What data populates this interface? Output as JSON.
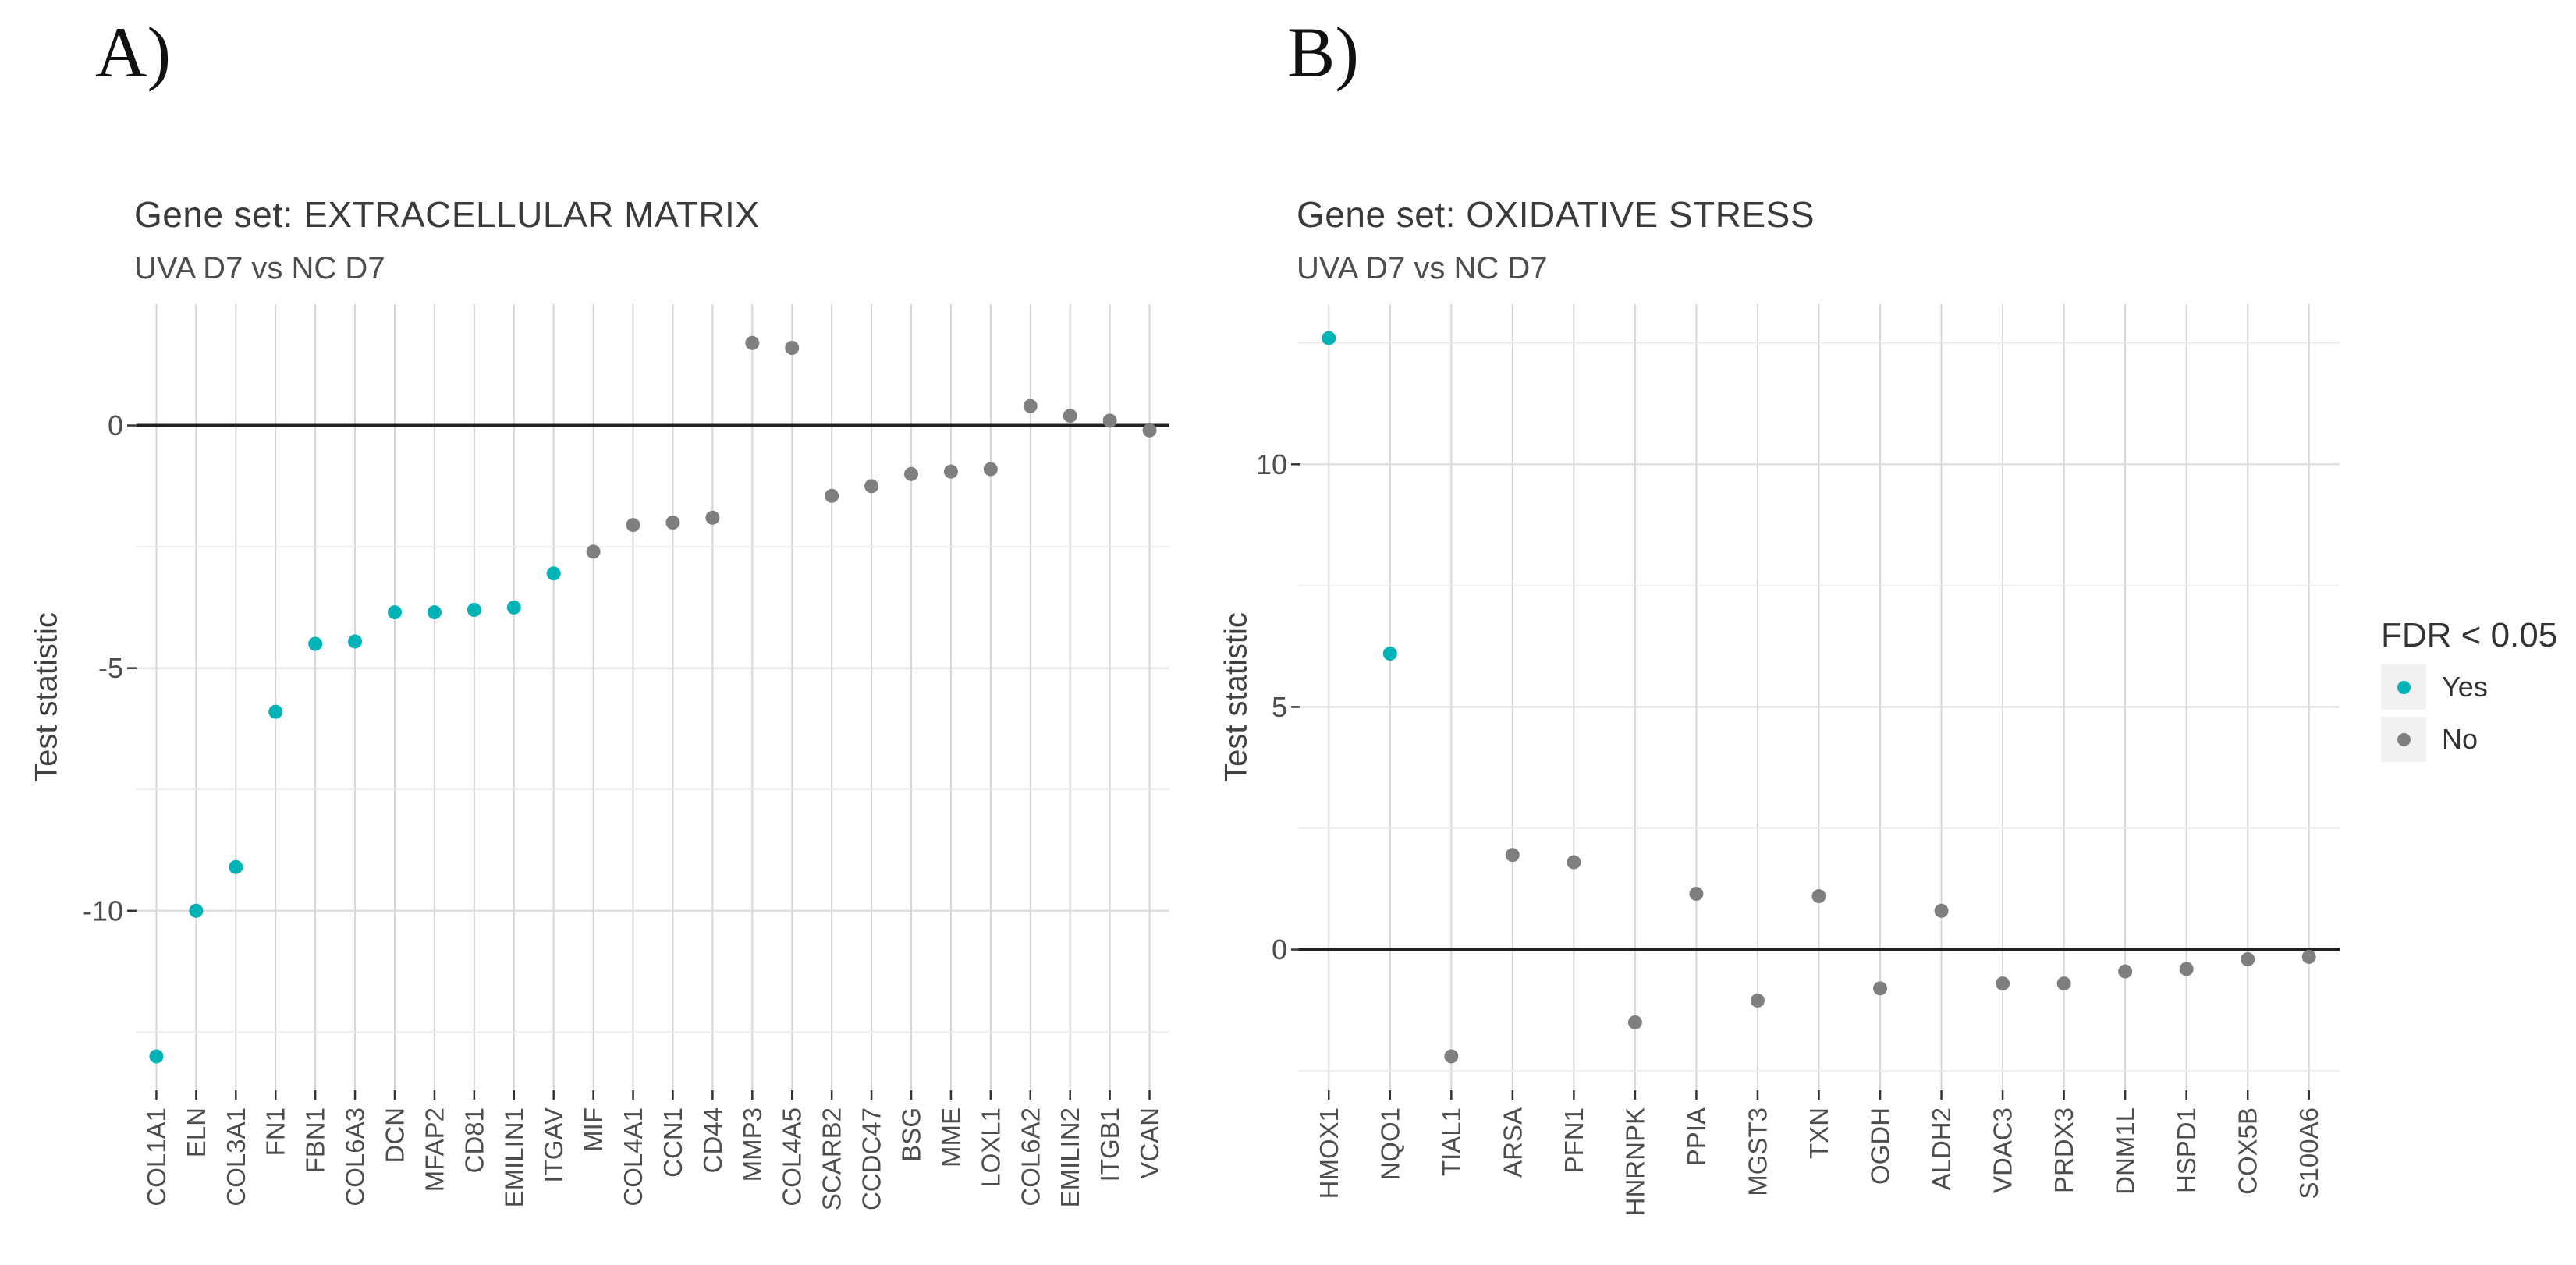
{
  "figure": {
    "panel_a_label": "A)",
    "panel_b_label": "B)"
  },
  "colors": {
    "yes": "#00b3b6",
    "no": "#7f7f7f",
    "grid_vertical": "#d6d6d6",
    "grid_major": "#dcdcdc",
    "grid_minor": "#ebebeb",
    "zero_line": "#212121",
    "axis_tick": "#333333",
    "axis_text": "#4d4d4d",
    "title_text": "#3a3a3a"
  },
  "legend": {
    "title": "FDR < 0.05",
    "items": [
      {
        "label": "Yes",
        "color_key": "yes"
      },
      {
        "label": "No",
        "color_key": "no"
      }
    ]
  },
  "chart_data": [
    {
      "type": "scatter",
      "title": "Gene set: EXTRACELLULAR MATRIX",
      "subtitle": "UVA D7 vs NC D7",
      "xlabel": "",
      "ylabel": "Test statistic",
      "ylim": [
        -13.7,
        2.5
      ],
      "yticks_major": [
        0,
        -5,
        -10
      ],
      "yticks_minor": [
        -2.5,
        -7.5,
        -12.5
      ],
      "grid": true,
      "legend_position": "right",
      "categories": [
        "COL1A1",
        "ELN",
        "COL3A1",
        "FN1",
        "FBN1",
        "COL6A3",
        "DCN",
        "MFAP2",
        "CD81",
        "EMILIN1",
        "ITGAV",
        "MIF",
        "COL4A1",
        "CCN1",
        "CD44",
        "MMP3",
        "COL4A5",
        "SCARB2",
        "CCDC47",
        "BSG",
        "MME",
        "LOXL1",
        "COL6A2",
        "EMILIN2",
        "ITGB1",
        "VCAN"
      ],
      "series": [
        {
          "name": "Test statistic",
          "values": [
            -13.0,
            -10.0,
            -9.1,
            -5.9,
            -4.5,
            -4.45,
            -3.85,
            -3.85,
            -3.8,
            -3.75,
            -3.05,
            -2.6,
            -2.05,
            -2.0,
            -1.9,
            1.7,
            1.6,
            -1.45,
            -1.25,
            -1.0,
            -0.95,
            -0.9,
            0.4,
            0.2,
            0.1,
            -0.1
          ]
        }
      ],
      "fdr_significant": [
        true,
        true,
        true,
        true,
        true,
        true,
        true,
        true,
        true,
        true,
        true,
        false,
        false,
        false,
        false,
        false,
        false,
        false,
        false,
        false,
        false,
        false,
        false,
        false,
        false,
        false
      ]
    },
    {
      "type": "scatter",
      "title": "Gene set: OXIDATIVE STRESS",
      "subtitle": "UVA D7 vs NC D7",
      "xlabel": "",
      "ylabel": "Test statistic",
      "ylim": [
        -2.9,
        13.3
      ],
      "yticks_major": [
        10,
        5,
        0
      ],
      "yticks_minor": [
        12.5,
        7.5,
        2.5,
        -2.5
      ],
      "grid": true,
      "legend_position": "right",
      "categories": [
        "HMOX1",
        "NQO1",
        "TIAL1",
        "ARSA",
        "PFN1",
        "HNRNPK",
        "PPIA",
        "MGST3",
        "TXN",
        "OGDH",
        "ALDH2",
        "VDAC3",
        "PRDX3",
        "DNM1L",
        "HSPD1",
        "COX5B",
        "S100A6"
      ],
      "series": [
        {
          "name": "Test statistic",
          "values": [
            12.6,
            6.1,
            -2.2,
            1.95,
            1.8,
            -1.5,
            1.15,
            -1.05,
            1.1,
            -0.8,
            0.8,
            -0.7,
            -0.7,
            -0.45,
            -0.4,
            -0.2,
            -0.15
          ]
        }
      ],
      "fdr_significant": [
        true,
        true,
        false,
        false,
        false,
        false,
        false,
        false,
        false,
        false,
        false,
        false,
        false,
        false,
        false,
        false,
        false
      ]
    }
  ]
}
